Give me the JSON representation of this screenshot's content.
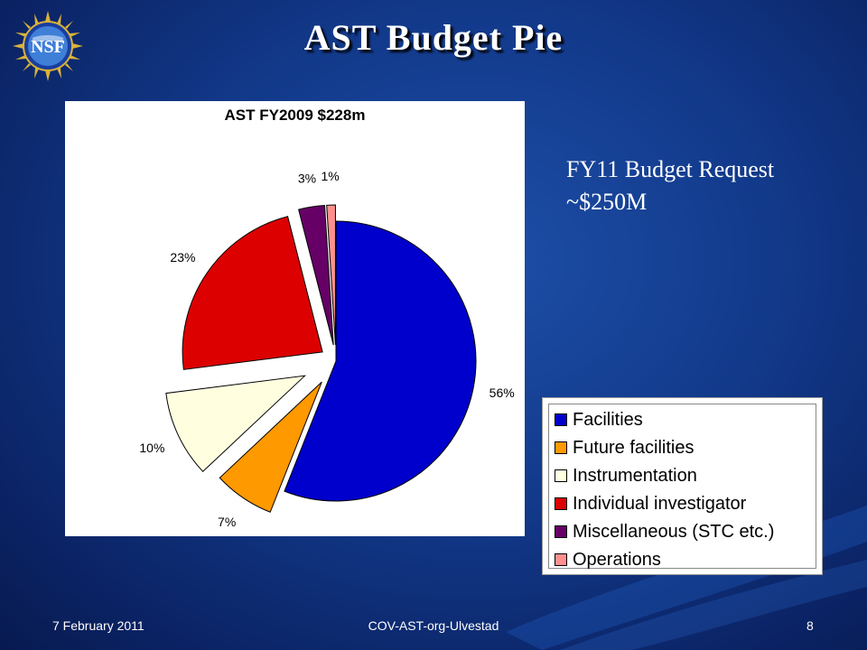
{
  "slide": {
    "title": "AST Budget Pie",
    "logo_text": "NSF",
    "request_line1": "FY11 Budget Request",
    "request_line2": "~$250M"
  },
  "footer": {
    "date": "7 February 2011",
    "center": "COV-AST-org-Ulvestad",
    "page": "8"
  },
  "chart_data": {
    "type": "pie",
    "title": "AST FY2009 $228m",
    "categories": [
      "Facilities",
      "Future facilities",
      "Instrumentation",
      "Individual investigator",
      "Miscellaneous (STC etc.)",
      "Operations"
    ],
    "values": [
      56,
      7,
      10,
      23,
      3,
      1
    ],
    "labels": [
      "56%",
      "7%",
      "10%",
      "23%",
      "3%",
      "1%"
    ],
    "colors": [
      "#0000cc",
      "#ff9900",
      "#ffffe0",
      "#dd0000",
      "#660066",
      "#ff8f8f"
    ],
    "exploded": true,
    "legend": "bottom-right"
  }
}
